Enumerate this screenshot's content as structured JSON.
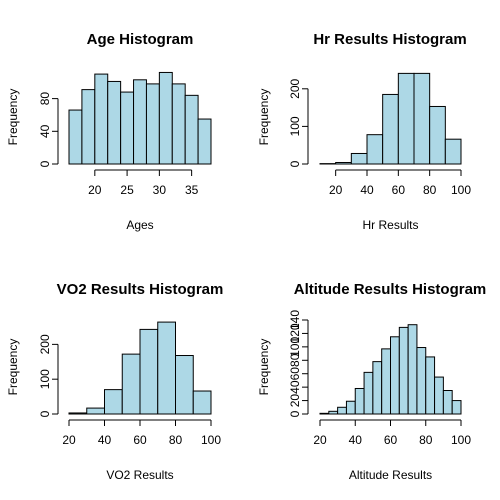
{
  "colors": {
    "bar_fill": "#add8e6",
    "bar_stroke": "#000000"
  },
  "chart_data": [
    {
      "type": "bar",
      "title": "Age Histogram",
      "xlabel": "Ages",
      "ylabel": "Frequency",
      "bin_edges": [
        16,
        18,
        20,
        22,
        24,
        26,
        28,
        30,
        32,
        34,
        36,
        38
      ],
      "values": [
        66,
        91,
        110,
        101,
        88,
        103,
        98,
        112,
        98,
        84,
        55
      ],
      "xlim": [
        16,
        38
      ],
      "ylim": [
        0,
        115
      ],
      "x_ticks": [
        20,
        25,
        30,
        35
      ],
      "y_ticks": [
        0,
        40,
        80
      ],
      "grid": false
    },
    {
      "type": "bar",
      "title": "Hr Results Histogram",
      "xlabel": "Hr Results",
      "ylabel": "Frequency",
      "bin_edges": [
        10,
        20,
        30,
        40,
        50,
        60,
        70,
        80,
        90,
        100
      ],
      "values": [
        1,
        4,
        28,
        78,
        185,
        241,
        241,
        153,
        66
      ],
      "xlim": [
        10,
        100
      ],
      "ylim": [
        0,
        250
      ],
      "x_ticks": [
        20,
        40,
        60,
        80,
        100
      ],
      "y_ticks": [
        0,
        100,
        200
      ],
      "grid": false
    },
    {
      "type": "bar",
      "title": "VO2 Results Histogram",
      "xlabel": "VO2 Results",
      "ylabel": "Frequency",
      "bin_edges": [
        20,
        30,
        40,
        50,
        60,
        70,
        80,
        90,
        100
      ],
      "values": [
        3,
        17,
        70,
        172,
        243,
        264,
        168,
        66
      ],
      "xlim": [
        20,
        100
      ],
      "ylim": [
        0,
        270
      ],
      "x_ticks": [
        20,
        40,
        60,
        80,
        100
      ],
      "y_ticks": [
        0,
        100,
        200
      ],
      "grid": false
    },
    {
      "type": "bar",
      "title": "Altitude Results Histogram",
      "xlabel": "Altitude Results",
      "ylabel": "Frequency",
      "bin_edges": [
        20,
        25,
        30,
        35,
        40,
        45,
        50,
        55,
        60,
        65,
        70,
        75,
        80,
        85,
        90,
        95,
        100
      ],
      "values": [
        1,
        4,
        10,
        19,
        38,
        62,
        78,
        97,
        115,
        129,
        133,
        99,
        85,
        55,
        35,
        20
      ],
      "xlim": [
        20,
        100
      ],
      "ylim": [
        0,
        140
      ],
      "x_ticks": [
        20,
        40,
        60,
        80,
        100
      ],
      "y_ticks": [
        0,
        20,
        40,
        60,
        80,
        100,
        120,
        140
      ],
      "grid": false
    }
  ]
}
